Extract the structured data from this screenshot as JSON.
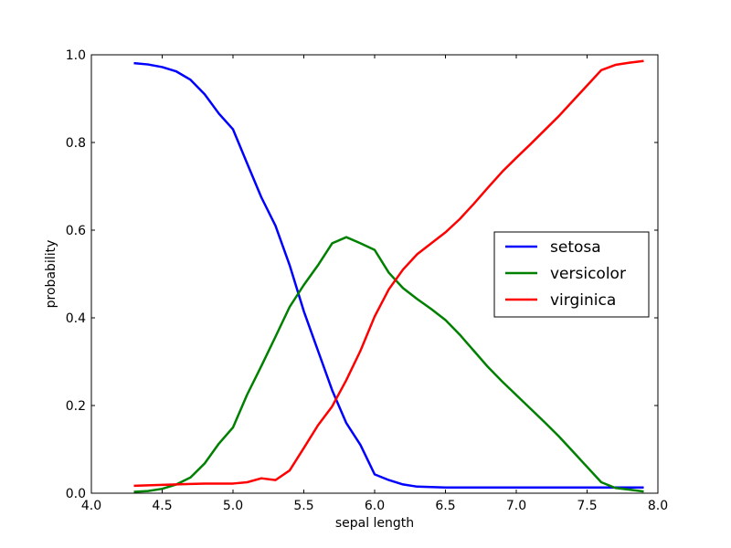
{
  "chart_data": {
    "type": "line",
    "title": "",
    "xlabel": "sepal length",
    "ylabel": "probability",
    "xlim": [
      4.0,
      8.0
    ],
    "ylim": [
      0.0,
      1.0
    ],
    "xticks": [
      "4.0",
      "4.5",
      "5.0",
      "5.5",
      "6.0",
      "6.5",
      "7.0",
      "7.5",
      "8.0"
    ],
    "yticks": [
      "0.0",
      "0.2",
      "0.4",
      "0.6",
      "0.8",
      "1.0"
    ],
    "grid": false,
    "legend_position": "center-right",
    "x": [
      4.3,
      4.4,
      4.5,
      4.6,
      4.7,
      4.8,
      4.9,
      5.0,
      5.1,
      5.2,
      5.3,
      5.4,
      5.5,
      5.6,
      5.7,
      5.8,
      5.9,
      6.0,
      6.1,
      6.2,
      6.3,
      6.4,
      6.5,
      6.6,
      6.7,
      6.8,
      6.9,
      7.0,
      7.1,
      7.2,
      7.3,
      7.4,
      7.5,
      7.6,
      7.7,
      7.8,
      7.9
    ],
    "series": [
      {
        "name": "setosa",
        "color": "#0000ff",
        "values": [
          0.981,
          0.978,
          0.972,
          0.962,
          0.943,
          0.91,
          0.866,
          0.83,
          0.752,
          0.675,
          0.61,
          0.52,
          0.415,
          0.325,
          0.235,
          0.16,
          0.11,
          0.043,
          0.03,
          0.02,
          0.015,
          0.014,
          0.013,
          0.013,
          0.013,
          0.013,
          0.013,
          0.013,
          0.013,
          0.013,
          0.013,
          0.013,
          0.013,
          0.013,
          0.013,
          0.013,
          0.013
        ]
      },
      {
        "name": "versicolor",
        "color": "#008000",
        "values": [
          0.003,
          0.005,
          0.01,
          0.02,
          0.036,
          0.068,
          0.113,
          0.15,
          0.225,
          0.29,
          0.357,
          0.425,
          0.475,
          0.52,
          0.57,
          0.584,
          0.57,
          0.555,
          0.503,
          0.468,
          0.443,
          0.42,
          0.395,
          0.362,
          0.325,
          0.288,
          0.255,
          0.224,
          0.193,
          0.162,
          0.13,
          0.095,
          0.06,
          0.025,
          0.012,
          0.008,
          0.004
        ]
      },
      {
        "name": "virginica",
        "color": "#ff0000",
        "values": [
          0.017,
          0.018,
          0.019,
          0.02,
          0.021,
          0.022,
          0.022,
          0.022,
          0.025,
          0.034,
          0.03,
          0.052,
          0.103,
          0.155,
          0.198,
          0.258,
          0.325,
          0.403,
          0.465,
          0.51,
          0.545,
          0.57,
          0.595,
          0.625,
          0.66,
          0.697,
          0.733,
          0.765,
          0.796,
          0.828,
          0.86,
          0.895,
          0.93,
          0.965,
          0.977,
          0.982,
          0.986
        ]
      }
    ]
  }
}
